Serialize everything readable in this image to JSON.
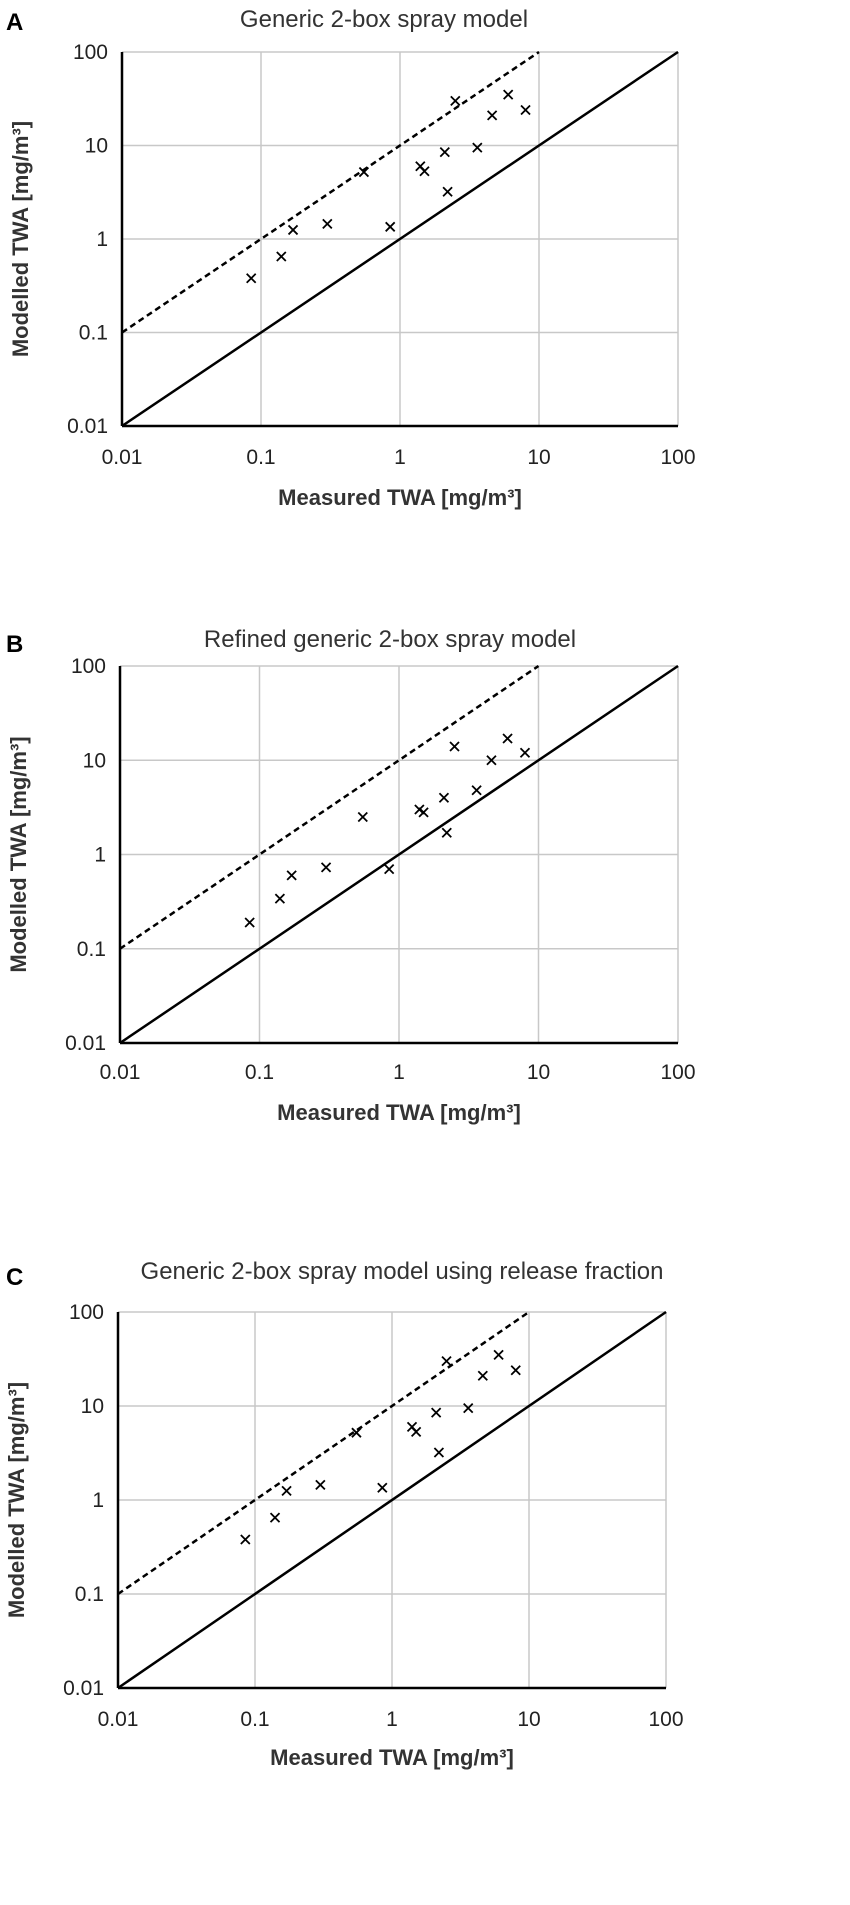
{
  "chart_data": [
    {
      "panel_label": "A",
      "type": "scatter",
      "title": "Generic 2-box spray model",
      "xlabel": "Measured TWA [mg/m³]",
      "ylabel": "Modelled TWA [mg/m³]",
      "xscale": "log",
      "yscale": "log",
      "xlim": [
        0.01,
        100
      ],
      "ylim": [
        0.01,
        100
      ],
      "x_ticks": [
        "0.01",
        "0.1",
        "1",
        "10",
        "100"
      ],
      "y_ticks": [
        "0.01",
        "0.1",
        "1",
        "10",
        "100"
      ],
      "grid": true,
      "marker": "x",
      "reference_lines": [
        {
          "style": "solid",
          "slope_factor": 1
        },
        {
          "style": "dashed",
          "slope_factor": 10
        }
      ],
      "series": [
        {
          "points": [
            {
              "x": 0.085,
              "y": 0.38
            },
            {
              "x": 0.14,
              "y": 0.65
            },
            {
              "x": 0.17,
              "y": 1.25
            },
            {
              "x": 0.3,
              "y": 1.45
            },
            {
              "x": 0.55,
              "y": 5.2
            },
            {
              "x": 0.85,
              "y": 1.35
            },
            {
              "x": 1.4,
              "y": 6.0
            },
            {
              "x": 1.5,
              "y": 5.3
            },
            {
              "x": 2.1,
              "y": 8.5
            },
            {
              "x": 2.2,
              "y": 3.2
            },
            {
              "x": 2.5,
              "y": 30
            },
            {
              "x": 3.6,
              "y": 9.5
            },
            {
              "x": 4.6,
              "y": 21
            },
            {
              "x": 6.0,
              "y": 35
            },
            {
              "x": 8.0,
              "y": 24
            }
          ]
        }
      ]
    },
    {
      "panel_label": "B",
      "type": "scatter",
      "title": "Refined generic 2-box spray model",
      "xlabel": "Measured TWA [mg/m³]",
      "ylabel": "Modelled TWA [mg/m³]",
      "xscale": "log",
      "yscale": "log",
      "xlim": [
        0.01,
        100
      ],
      "ylim": [
        0.01,
        100
      ],
      "x_ticks": [
        "0.01",
        "0.1",
        "1",
        "10",
        "100"
      ],
      "y_ticks": [
        "0.01",
        "0.1",
        "1",
        "10",
        "100"
      ],
      "grid": true,
      "marker": "x",
      "reference_lines": [
        {
          "style": "solid",
          "slope_factor": 1
        },
        {
          "style": "dashed",
          "slope_factor": 10
        }
      ],
      "series": [
        {
          "points": [
            {
              "x": 0.085,
              "y": 0.19
            },
            {
              "x": 0.14,
              "y": 0.34
            },
            {
              "x": 0.17,
              "y": 0.6
            },
            {
              "x": 0.3,
              "y": 0.73
            },
            {
              "x": 0.55,
              "y": 2.5
            },
            {
              "x": 0.85,
              "y": 0.7
            },
            {
              "x": 1.4,
              "y": 3.0
            },
            {
              "x": 1.5,
              "y": 2.8
            },
            {
              "x": 2.1,
              "y": 4.0
            },
            {
              "x": 2.2,
              "y": 1.7
            },
            {
              "x": 2.5,
              "y": 14
            },
            {
              "x": 3.6,
              "y": 4.8
            },
            {
              "x": 4.6,
              "y": 10
            },
            {
              "x": 6.0,
              "y": 17
            },
            {
              "x": 8.0,
              "y": 12
            }
          ]
        }
      ]
    },
    {
      "panel_label": "C",
      "type": "scatter",
      "title": "Generic 2-box spray model using release fraction",
      "xlabel": "Measured TWA [mg/m³]",
      "ylabel": "Modelled TWA [mg/m³]",
      "xscale": "log",
      "yscale": "log",
      "xlim": [
        0.01,
        100
      ],
      "ylim": [
        0.01,
        100
      ],
      "x_ticks": [
        "0.01",
        "0.1",
        "1",
        "10",
        "100"
      ],
      "y_ticks": [
        "0.01",
        "0.1",
        "1",
        "10",
        "100"
      ],
      "grid": true,
      "marker": "x",
      "reference_lines": [
        {
          "style": "solid",
          "slope_factor": 1
        },
        {
          "style": "dashed",
          "slope_factor": 10
        }
      ],
      "series": [
        {
          "points": [
            {
              "x": 0.085,
              "y": 0.38
            },
            {
              "x": 0.14,
              "y": 0.65
            },
            {
              "x": 0.17,
              "y": 1.25
            },
            {
              "x": 0.3,
              "y": 1.45
            },
            {
              "x": 0.55,
              "y": 5.2
            },
            {
              "x": 0.85,
              "y": 1.35
            },
            {
              "x": 1.4,
              "y": 6.0
            },
            {
              "x": 1.5,
              "y": 5.3
            },
            {
              "x": 2.1,
              "y": 8.5
            },
            {
              "x": 2.2,
              "y": 3.2
            },
            {
              "x": 2.5,
              "y": 30
            },
            {
              "x": 3.6,
              "y": 9.5
            },
            {
              "x": 4.6,
              "y": 21
            },
            {
              "x": 6.0,
              "y": 35
            },
            {
              "x": 8.0,
              "y": 24
            }
          ]
        }
      ]
    }
  ]
}
